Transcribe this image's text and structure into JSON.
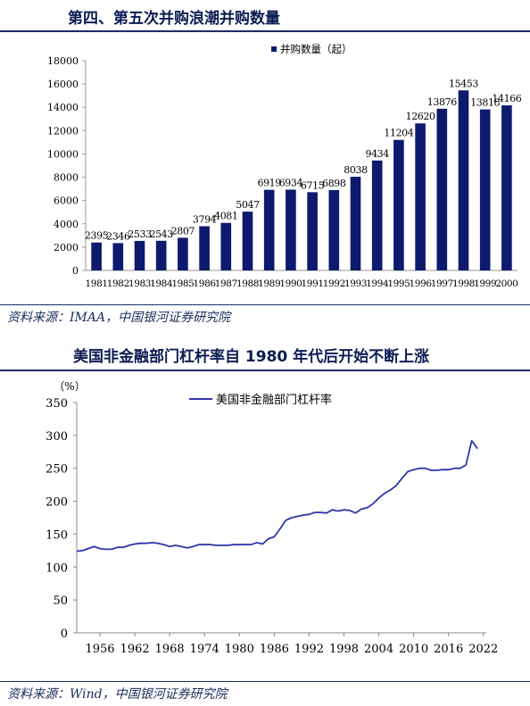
{
  "header1": {
    "title": "第四、第五次并购浪潮并购数量"
  },
  "source1": {
    "text": "资料来源：IMAA，中国银河证券研究院"
  },
  "header2": {
    "title": "美国非金融部门杠杆率自 1980 年代后开始不断上涨"
  },
  "source2": {
    "text": "资料来源：Wind，中国银河证券研究院"
  },
  "colors": {
    "bar": "#0e1a6e",
    "line": "#2d36a8",
    "title": "#0b1c52",
    "rule": "#1b2d6a"
  },
  "chart_data": [
    {
      "type": "bar",
      "legend": "并购数量（起）",
      "legend_position": "top-right",
      "categories": [
        "1981",
        "1982",
        "1983",
        "1984",
        "1985",
        "1986",
        "1987",
        "1988",
        "1989",
        "1990",
        "1991",
        "1992",
        "1993",
        "1994",
        "1995",
        "1996",
        "1997",
        "1998",
        "1999",
        "2000"
      ],
      "values": [
        2395,
        2346,
        2533,
        2543,
        2807,
        3794,
        4081,
        5047,
        6919,
        6934,
        6715,
        6898,
        8038,
        9434,
        11204,
        12620,
        13876,
        15453,
        13818,
        14166
      ],
      "ylim": [
        0,
        18000
      ],
      "yticks": [
        0,
        2000,
        4000,
        6000,
        8000,
        10000,
        12000,
        14000,
        16000,
        18000
      ],
      "grid": false
    },
    {
      "type": "line",
      "series": [
        {
          "name": "美国非金融部门杠杆率",
          "x": [
            1952,
            1953,
            1954,
            1955,
            1956,
            1957,
            1958,
            1959,
            1960,
            1961,
            1962,
            1963,
            1964,
            1965,
            1966,
            1967,
            1968,
            1969,
            1970,
            1971,
            1972,
            1973,
            1974,
            1975,
            1976,
            1977,
            1978,
            1979,
            1980,
            1981,
            1982,
            1983,
            1984,
            1985,
            1986,
            1987,
            1988,
            1989,
            1990,
            1991,
            1992,
            1993,
            1994,
            1995,
            1996,
            1997,
            1998,
            1999,
            2000,
            2001,
            2002,
            2003,
            2004,
            2005,
            2006,
            2007,
            2008,
            2009,
            2010,
            2011,
            2012,
            2013,
            2014,
            2015,
            2016,
            2017,
            2018,
            2019,
            2020,
            2021
          ],
          "values": [
            124,
            125,
            128,
            131,
            128,
            127,
            127,
            130,
            130,
            133,
            135,
            136,
            136,
            137,
            136,
            134,
            131,
            133,
            131,
            129,
            131,
            134,
            134,
            134,
            133,
            133,
            133,
            134,
            134,
            134,
            134,
            137,
            135,
            143,
            146,
            158,
            171,
            175,
            177,
            179,
            180,
            183,
            183,
            182,
            187,
            185,
            187,
            186,
            182,
            188,
            190,
            196,
            205,
            212,
            217,
            224,
            235,
            245,
            248,
            250,
            250,
            247,
            247,
            248,
            248,
            250,
            250,
            255,
            292,
            280
          ]
        }
      ],
      "ylabel": "（%）",
      "ylim": [
        0,
        350
      ],
      "yticks": [
        0,
        50,
        100,
        150,
        200,
        250,
        300,
        350
      ],
      "xticks": [
        1956,
        1962,
        1968,
        1974,
        1980,
        1986,
        1992,
        1998,
        2004,
        2010,
        2016,
        2022
      ],
      "legend_position": "top-left",
      "grid": false
    }
  ]
}
